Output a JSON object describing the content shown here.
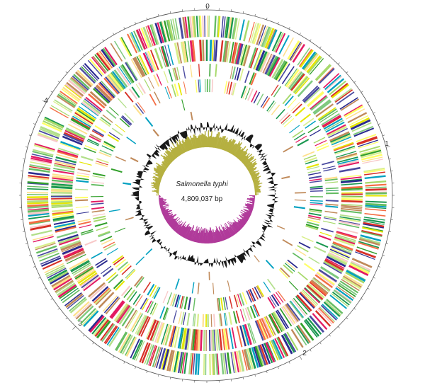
{
  "organism": "Salmonella typhi",
  "genome_size": "4,809,037 bp",
  "scale_labels": [
    "0",
    "1",
    "2",
    "3",
    "4"
  ],
  "colors": {
    "feature_palette": [
      "#1a9850",
      "#66bd63",
      "#a6d96a",
      "#d9ef8b",
      "#fee08b",
      "#ffff66",
      "#e6e600",
      "#f46d43",
      "#d73027",
      "#4a4aa0",
      "#2b2b8f",
      "#00a0c0",
      "#7fc97f",
      "#b2df8a",
      "#33a02c",
      "#f8c8c8",
      "#c08a5a",
      "#e31a63"
    ],
    "gc_content": "#1a1a1a",
    "gc_skew_positive": "#b5b040",
    "gc_skew_negative": "#b03a9a",
    "scale_ring": "#555555"
  },
  "tracks": [
    {
      "name": "forward-strand-genes",
      "density": 0.78
    },
    {
      "name": "reverse-strand-genes",
      "density": 0.78
    },
    {
      "name": "pseudogenes-forward",
      "density": 0.55
    },
    {
      "name": "pseudogenes-reverse",
      "density": 0.55
    },
    {
      "name": "insertion-sequences",
      "density": 0.18
    },
    {
      "name": "rna-genes",
      "density": 0.14
    }
  ]
}
